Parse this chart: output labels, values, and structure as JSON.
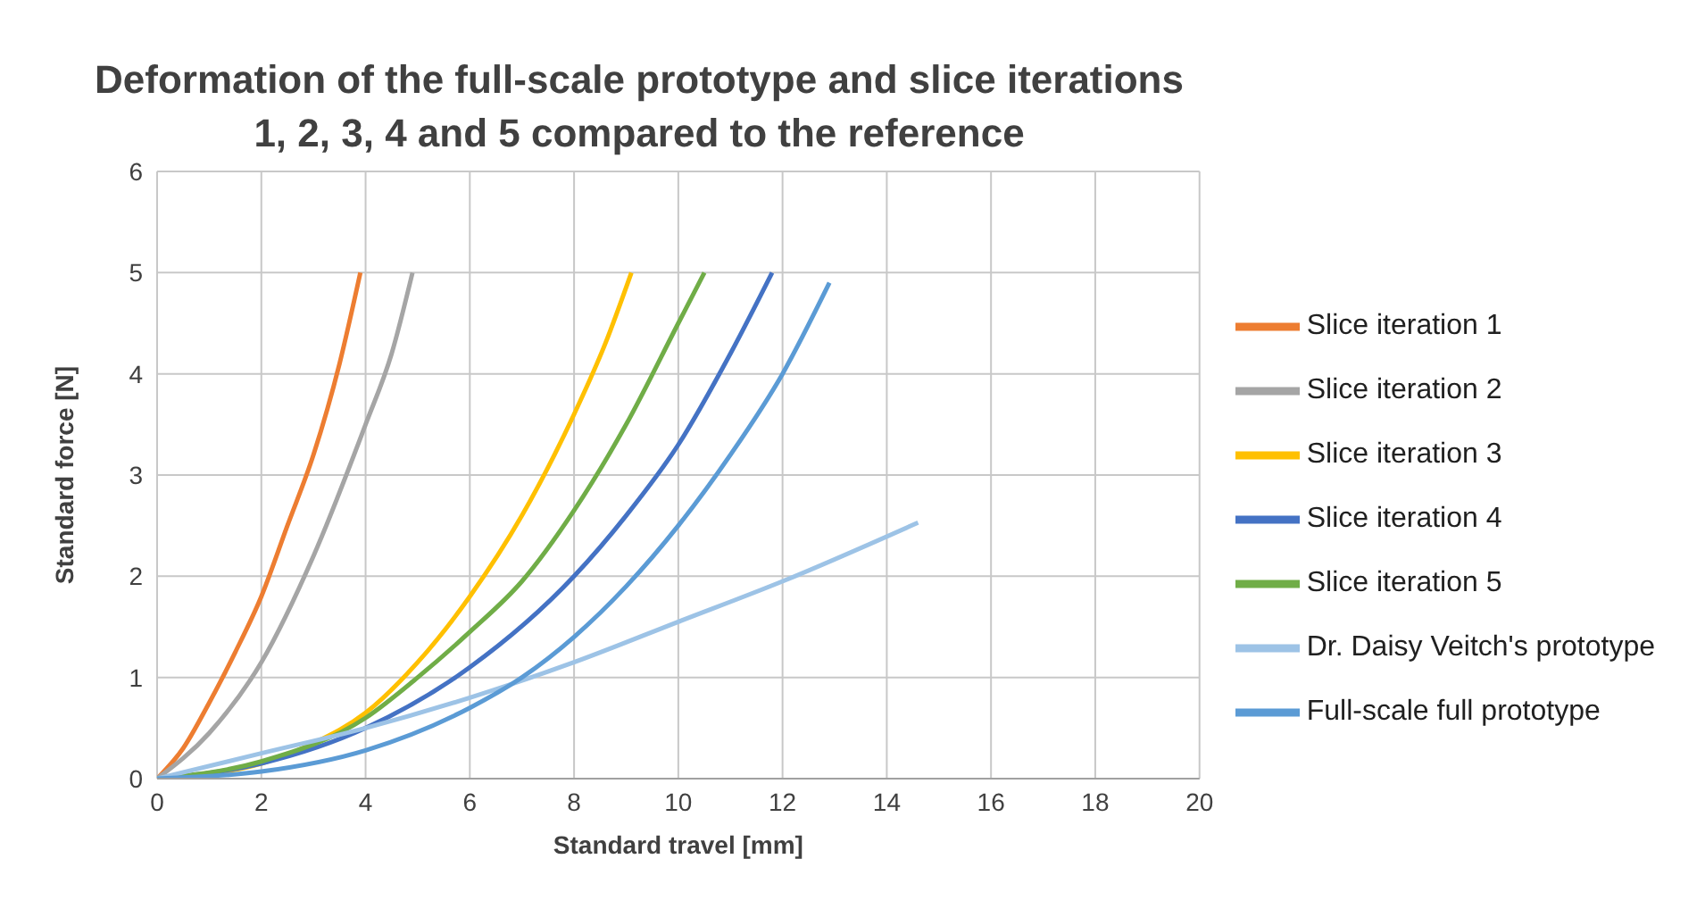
{
  "chart_data": {
    "type": "line",
    "title": "Deformation of the full-scale prototype and slice iterations\n1, 2, 3, 4 and 5 compared to the reference",
    "xlabel": "Standard travel [mm]",
    "ylabel": "Standard force [N]",
    "xlim": [
      0,
      20
    ],
    "xticks": [
      0,
      2,
      4,
      6,
      8,
      10,
      12,
      14,
      16,
      18,
      20
    ],
    "ylim": [
      0,
      6
    ],
    "yticks": [
      0,
      1,
      2,
      3,
      4,
      5,
      6
    ],
    "grid": true,
    "legend": "right",
    "marker": "none",
    "line_style": "solid",
    "series": [
      {
        "name": "Slice iteration 1",
        "color": "#ed7d31",
        "x": [
          0,
          0.5,
          1,
          1.5,
          2,
          2.5,
          3,
          3.5,
          3.9
        ],
        "values": [
          0,
          0.3,
          0.75,
          1.25,
          1.8,
          2.5,
          3.2,
          4.1,
          5
        ]
      },
      {
        "name": "Slice iteration 2",
        "color": "#a5a5a5",
        "x": [
          0,
          1,
          2,
          3,
          4,
          4.5,
          4.9
        ],
        "values": [
          0,
          0.45,
          1.15,
          2.2,
          3.5,
          4.2,
          5
        ]
      },
      {
        "name": "Slice iteration 3",
        "color": "#ffc000",
        "x": [
          0,
          2,
          3,
          4,
          5,
          6,
          7,
          8,
          8.6,
          9.1
        ],
        "values": [
          0,
          0.15,
          0.35,
          0.65,
          1.15,
          1.8,
          2.6,
          3.6,
          4.3,
          5
        ]
      },
      {
        "name": "Slice iteration 4",
        "color": "#4472c4",
        "x": [
          0,
          2,
          4,
          6,
          8,
          9,
          10,
          11,
          11.8
        ],
        "values": [
          0,
          0.15,
          0.5,
          1.1,
          2,
          2.6,
          3.3,
          4.2,
          5
        ]
      },
      {
        "name": "Slice iteration 5",
        "color": "#70ad47",
        "x": [
          0,
          2,
          4,
          5,
          6,
          7,
          8,
          9,
          10,
          10.5
        ],
        "values": [
          0,
          0.17,
          0.6,
          1,
          1.45,
          1.95,
          2.65,
          3.5,
          4.5,
          5
        ]
      },
      {
        "name": "Dr. Daisy Veitch's prototype",
        "color": "#9dc3e6",
        "x": [
          0,
          2,
          4,
          6,
          8,
          10,
          12,
          14.6
        ],
        "values": [
          0,
          0.25,
          0.5,
          0.8,
          1.15,
          1.55,
          1.95,
          2.53
        ]
      },
      {
        "name": "Full-scale full prototype",
        "color": "#5b9bd5",
        "x": [
          0,
          2,
          4,
          6,
          7,
          8,
          9,
          10,
          11,
          12,
          12.9
        ],
        "values": [
          0,
          0.07,
          0.28,
          0.7,
          1,
          1.4,
          1.9,
          2.5,
          3.2,
          4,
          4.9
        ]
      }
    ]
  }
}
